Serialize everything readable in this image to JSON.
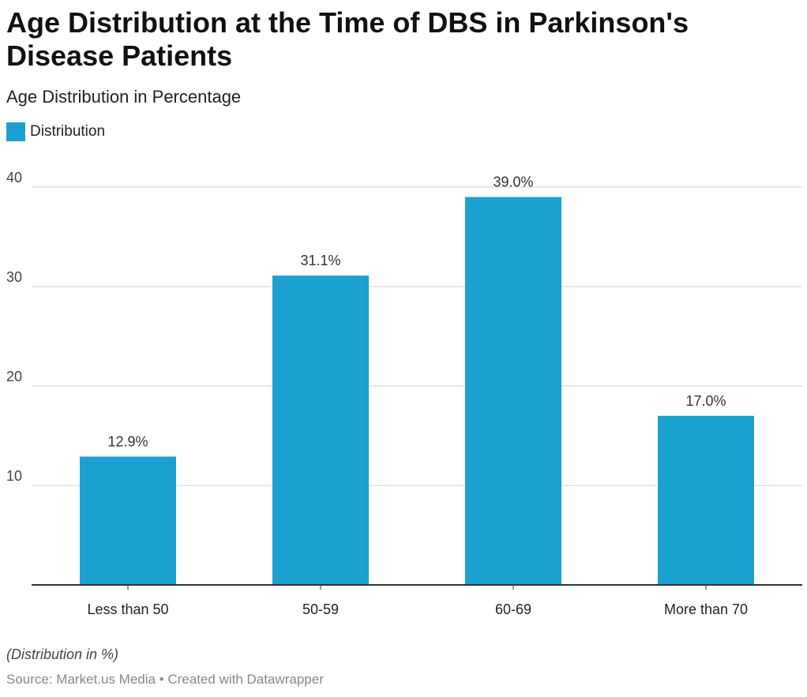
{
  "title": "Age Distribution at the Time of DBS in Parkinson's Disease Patients",
  "subtitle": "Age Distribution in Percentage",
  "notes": "(Distribution in %)",
  "source": "Source: Market.us Media • Created with Datawrapper",
  "chart_data": {
    "type": "bar",
    "title": "Age Distribution at the Time of DBS in Parkinson's Disease Patients",
    "subtitle": "Age Distribution in Percentage",
    "categories": [
      "Less than 50",
      "50-59",
      "60-69",
      "More than 70"
    ],
    "series": [
      {
        "name": "Distribution",
        "values": [
          12.9,
          31.1,
          39.0,
          17.0
        ],
        "labels": [
          "12.9%",
          "31.1%",
          "39.0%",
          "17.0%"
        ],
        "color": "#1ba1cf"
      }
    ],
    "yticks": [
      10,
      20,
      30,
      40
    ],
    "ylim": [
      0,
      40
    ],
    "grid": true,
    "legend_position": "top-left",
    "colors": {
      "bar": "#1ba1cf",
      "grid": "#d0d0d0",
      "axis": "#333333"
    }
  }
}
